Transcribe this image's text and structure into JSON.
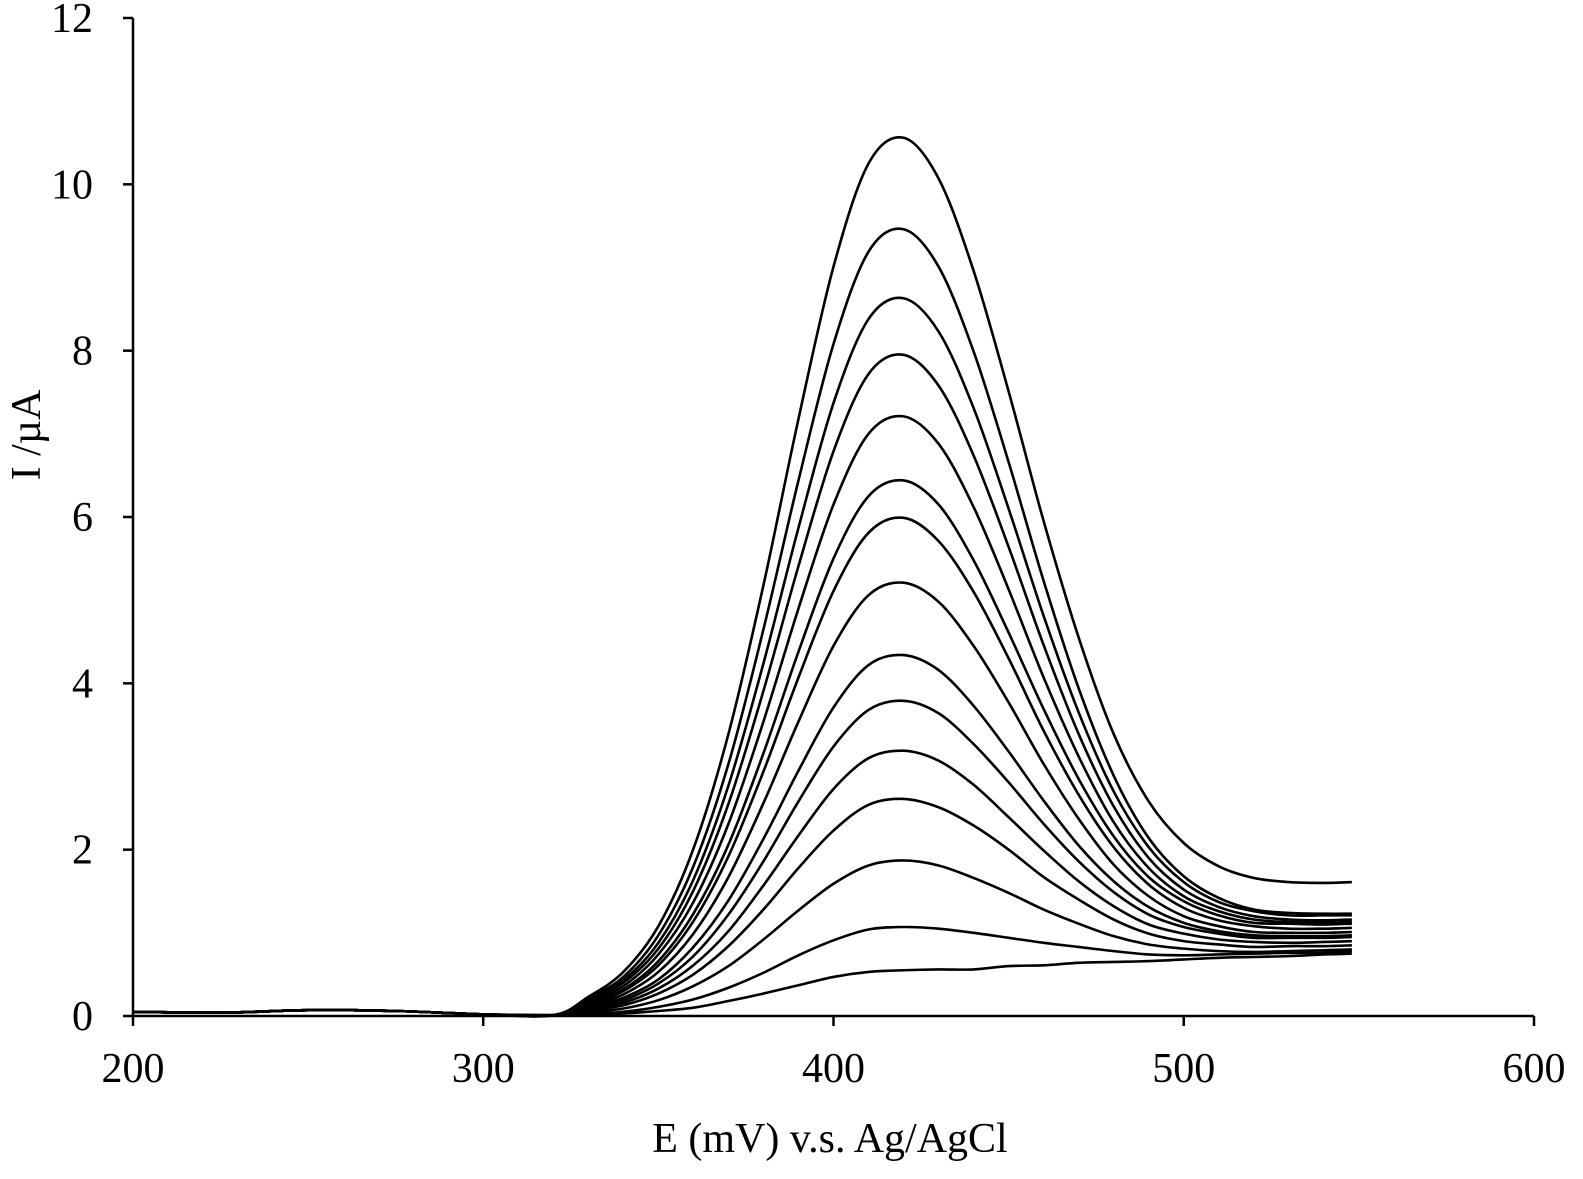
{
  "chart_data": {
    "type": "line",
    "xlabel": "E (mV) v.s. Ag/AgCl",
    "ylabel": "I /µA",
    "color": "#000000",
    "xlim": [
      200,
      600
    ],
    "xticks": [
      200,
      300,
      400,
      500,
      600
    ],
    "ylim": [
      0,
      12
    ],
    "yticks": [
      0,
      2,
      4,
      6,
      8,
      10,
      12
    ],
    "grid": false,
    "x": [
      200,
      225,
      250,
      275,
      300,
      320,
      330,
      340,
      350,
      360,
      370,
      380,
      390,
      400,
      410,
      420,
      430,
      440,
      450,
      460,
      470,
      480,
      490,
      500,
      510,
      520,
      530,
      540,
      548
    ],
    "series": [
      {
        "values": [
          0.05,
          0.04,
          0.07,
          0.06,
          0.02,
          0.01,
          0.23,
          0.53,
          1.08,
          2.01,
          3.39,
          5.18,
          7.18,
          9.01,
          10.25,
          10.56,
          10.07,
          8.96,
          7.51,
          5.95,
          4.55,
          3.39,
          2.58,
          2.08,
          1.8,
          1.66,
          1.61,
          1.6,
          1.61
        ]
      },
      {
        "values": [
          0.05,
          0.04,
          0.07,
          0.06,
          0.02,
          0.01,
          0.21,
          0.47,
          0.97,
          1.8,
          3.03,
          4.65,
          6.44,
          8.08,
          9.19,
          9.46,
          9.01,
          7.99,
          6.66,
          5.23,
          3.94,
          2.89,
          2.14,
          1.68,
          1.42,
          1.28,
          1.24,
          1.23,
          1.23
        ]
      },
      {
        "values": [
          0.05,
          0.04,
          0.07,
          0.06,
          0.02,
          0.01,
          0.19,
          0.43,
          0.88,
          1.64,
          2.77,
          4.24,
          5.87,
          7.37,
          8.38,
          8.63,
          8.23,
          7.31,
          6.1,
          4.81,
          3.65,
          2.7,
          2.03,
          1.61,
          1.37,
          1.26,
          1.21,
          1.21,
          1.21
        ]
      },
      {
        "values": [
          0.05,
          0.04,
          0.07,
          0.06,
          0.02,
          0.01,
          0.18,
          0.4,
          0.81,
          1.51,
          2.55,
          3.91,
          5.41,
          6.79,
          7.72,
          7.95,
          7.58,
          6.74,
          5.64,
          4.46,
          3.39,
          2.52,
          1.9,
          1.52,
          1.31,
          1.2,
          1.16,
          1.15,
          1.16
        ]
      },
      {
        "values": [
          0.05,
          0.04,
          0.07,
          0.06,
          0.02,
          0.01,
          0.16,
          0.36,
          0.74,
          1.37,
          2.31,
          3.54,
          4.9,
          6.15,
          7.0,
          7.21,
          6.88,
          6.12,
          5.13,
          4.07,
          3.12,
          2.33,
          1.78,
          1.44,
          1.26,
          1.16,
          1.13,
          1.12,
          1.13
        ]
      },
      {
        "values": [
          0.05,
          0.04,
          0.07,
          0.06,
          0.02,
          0.01,
          0.14,
          0.32,
          0.66,
          1.23,
          2.06,
          3.16,
          4.38,
          5.5,
          6.25,
          6.44,
          6.15,
          5.48,
          4.61,
          3.69,
          2.85,
          2.16,
          1.67,
          1.38,
          1.21,
          1.12,
          1.11,
          1.1,
          1.11
        ]
      },
      {
        "values": [
          0.05,
          0.04,
          0.07,
          0.06,
          0.02,
          0.01,
          0.13,
          0.3,
          0.61,
          1.14,
          1.92,
          2.94,
          4.07,
          5.11,
          5.81,
          5.99,
          5.71,
          5.1,
          4.3,
          3.43,
          2.66,
          2.03,
          1.58,
          1.3,
          1.15,
          1.08,
          1.05,
          1.05,
          1.06
        ]
      },
      {
        "values": [
          0.05,
          0.04,
          0.07,
          0.06,
          0.02,
          0.01,
          0.11,
          0.26,
          0.53,
          0.99,
          1.67,
          2.56,
          3.54,
          4.45,
          5.06,
          5.21,
          4.98,
          4.45,
          3.77,
          3.03,
          2.37,
          1.82,
          1.44,
          1.2,
          1.08,
          1.01,
          1.0,
          1.0,
          1.01
        ]
      },
      {
        "values": [
          0.05,
          0.04,
          0.07,
          0.06,
          0.02,
          0.01,
          0.1,
          0.22,
          0.44,
          0.83,
          1.39,
          2.13,
          2.95,
          3.71,
          4.22,
          4.34,
          4.16,
          3.73,
          3.18,
          2.59,
          2.05,
          1.62,
          1.31,
          1.12,
          1.02,
          0.97,
          0.96,
          0.96,
          0.97
        ]
      },
      {
        "values": [
          0.05,
          0.04,
          0.07,
          0.06,
          0.02,
          0.01,
          0.08,
          0.19,
          0.39,
          0.72,
          1.22,
          1.86,
          2.58,
          3.24,
          3.68,
          3.79,
          3.64,
          3.27,
          2.81,
          2.31,
          1.86,
          1.49,
          1.22,
          1.07,
          0.99,
          0.94,
          0.94,
          0.94,
          0.95
        ]
      },
      {
        "values": [
          0.05,
          0.04,
          0.07,
          0.06,
          0.02,
          0.01,
          0.07,
          0.16,
          0.33,
          0.61,
          1.02,
          1.57,
          2.17,
          2.73,
          3.1,
          3.19,
          3.07,
          2.78,
          2.39,
          1.99,
          1.62,
          1.32,
          1.1,
          0.99,
          0.92,
          0.89,
          0.88,
          0.89,
          0.9
        ]
      },
      {
        "values": [
          0.05,
          0.04,
          0.07,
          0.06,
          0.02,
          0.01,
          0.06,
          0.13,
          0.27,
          0.5,
          0.84,
          1.28,
          1.78,
          2.23,
          2.54,
          2.61,
          2.51,
          2.29,
          2.0,
          1.67,
          1.4,
          1.16,
          0.99,
          0.9,
          0.86,
          0.83,
          0.84,
          0.84,
          0.85
        ]
      },
      {
        "values": [
          0.05,
          0.04,
          0.07,
          0.06,
          0.02,
          0.01,
          0.04,
          0.09,
          0.19,
          0.36,
          0.6,
          0.92,
          1.27,
          1.59,
          1.81,
          1.87,
          1.81,
          1.66,
          1.48,
          1.28,
          1.11,
          0.96,
          0.86,
          0.81,
          0.78,
          0.77,
          0.78,
          0.79,
          0.8
        ]
      },
      {
        "values": [
          0.05,
          0.04,
          0.07,
          0.06,
          0.02,
          0.01,
          0.02,
          0.05,
          0.11,
          0.2,
          0.34,
          0.52,
          0.73,
          0.91,
          1.04,
          1.07,
          1.05,
          1.0,
          0.94,
          0.88,
          0.83,
          0.78,
          0.74,
          0.73,
          0.74,
          0.75,
          0.76,
          0.76,
          0.78
        ]
      },
      {
        "values": [
          0.05,
          0.04,
          0.07,
          0.06,
          0.02,
          0.01,
          0.01,
          0.03,
          0.06,
          0.1,
          0.18,
          0.27,
          0.37,
          0.47,
          0.53,
          0.55,
          0.56,
          0.56,
          0.6,
          0.61,
          0.64,
          0.65,
          0.66,
          0.68,
          0.7,
          0.71,
          0.72,
          0.74,
          0.75
        ]
      }
    ]
  }
}
